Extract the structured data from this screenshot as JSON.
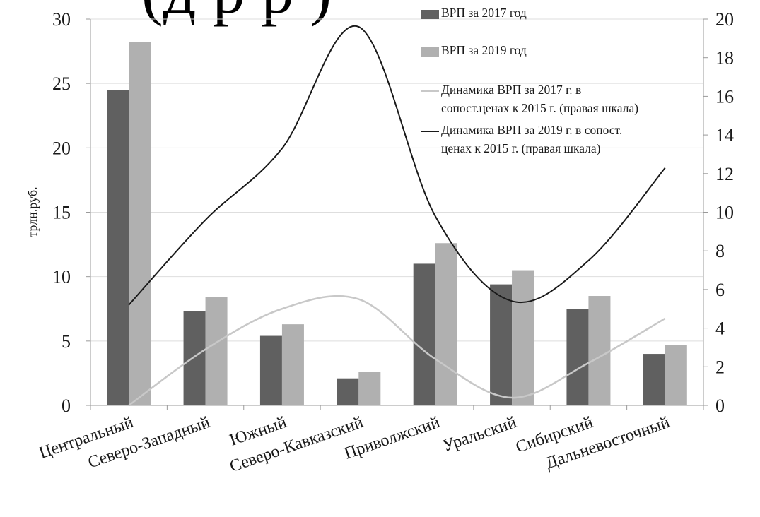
{
  "header_fragment": "(д                р              р            )",
  "chart_data": {
    "type": "bar",
    "categories": [
      "Центральный",
      "Северо-Западный",
      "Южный",
      "Северо-Кавказский",
      "Приволжский",
      "Уральский",
      "Сибирский",
      "Дальневосточный"
    ],
    "series": [
      {
        "name": "ВРП за 2017 год",
        "type": "bar",
        "axis": "left",
        "color": "#606060",
        "values": [
          24.5,
          7.3,
          5.4,
          2.1,
          11.0,
          9.4,
          7.5,
          4.0
        ]
      },
      {
        "name": "ВРП за 2019 год",
        "type": "bar",
        "axis": "left",
        "color": "#b0b0b0",
        "values": [
          28.2,
          8.4,
          6.3,
          2.6,
          12.6,
          10.5,
          8.5,
          4.7
        ]
      },
      {
        "name": "Динамика ВРП за 2017 г. в сопост.ценах  к 2015 г. (правая шкала)",
        "type": "line",
        "axis": "right",
        "color": "#c8c8c8",
        "values": [
          0.0,
          2.9,
          5.0,
          5.5,
          2.4,
          0.4,
          2.2,
          4.5
        ]
      },
      {
        "name": "Динамика ВРП за 2019 г. в сопост. ценах к 2015 г. (правая шкала)",
        "type": "line",
        "axis": "right",
        "color": "#1a1a1a",
        "values": [
          5.2,
          9.6,
          13.3,
          19.6,
          9.8,
          5.4,
          7.5,
          12.3
        ]
      }
    ],
    "ylabel": "трлн.руб.",
    "ylim": [
      0,
      30
    ],
    "yticks": [
      0,
      5,
      10,
      15,
      20,
      25,
      30
    ],
    "y2lim": [
      0,
      20
    ],
    "y2ticks": [
      0,
      2,
      4,
      6,
      8,
      10,
      12,
      14,
      16,
      18,
      20
    ],
    "legend": {
      "position": "top-right",
      "entries": [
        {
          "lines": [
            "ВРП за 2017 год"
          ]
        },
        {
          "lines": [
            "ВРП за 2019 год"
          ]
        },
        {
          "lines": [
            "Динамика ВРП за 2017 г. в",
            "сопост.ценах  к 2015 г. (правая шкала)"
          ]
        },
        {
          "lines": [
            "Динамика ВРП за 2019 г. в сопост.",
            "ценах к 2015 г. (правая шкала)"
          ]
        }
      ]
    },
    "grid": true
  }
}
